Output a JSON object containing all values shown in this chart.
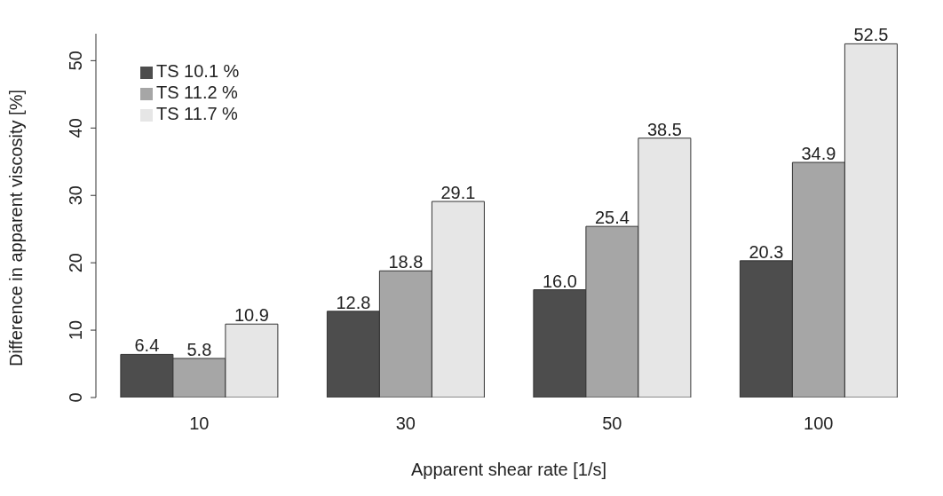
{
  "chart_data": {
    "type": "bar",
    "xlabel": "Apparent shear rate [1/s]",
    "ylabel": "Difference in apparent viscosity [%]",
    "categories": [
      "10",
      "30",
      "50",
      "100"
    ],
    "series": [
      {
        "name": "TS 10.1 %",
        "color": "#4d4d4d",
        "values": [
          6.4,
          12.8,
          16.0,
          20.3
        ],
        "value_labels": [
          "6.4",
          "12.8",
          "16.0",
          "20.3"
        ]
      },
      {
        "name": "TS 11.2 %",
        "color": "#a6a6a6",
        "values": [
          5.8,
          18.8,
          25.4,
          34.9
        ],
        "value_labels": [
          "5.8",
          "18.8",
          "25.4",
          "34.9"
        ]
      },
      {
        "name": "TS 11.7 %",
        "color": "#e6e6e6",
        "values": [
          10.9,
          29.1,
          38.5,
          52.5
        ],
        "value_labels": [
          "10.9",
          "29.1",
          "38.5",
          "52.5"
        ]
      }
    ],
    "ylim": [
      0,
      54
    ],
    "yticks": [
      0,
      10,
      20,
      30,
      40,
      50
    ],
    "grid": false,
    "legend": "top left"
  }
}
